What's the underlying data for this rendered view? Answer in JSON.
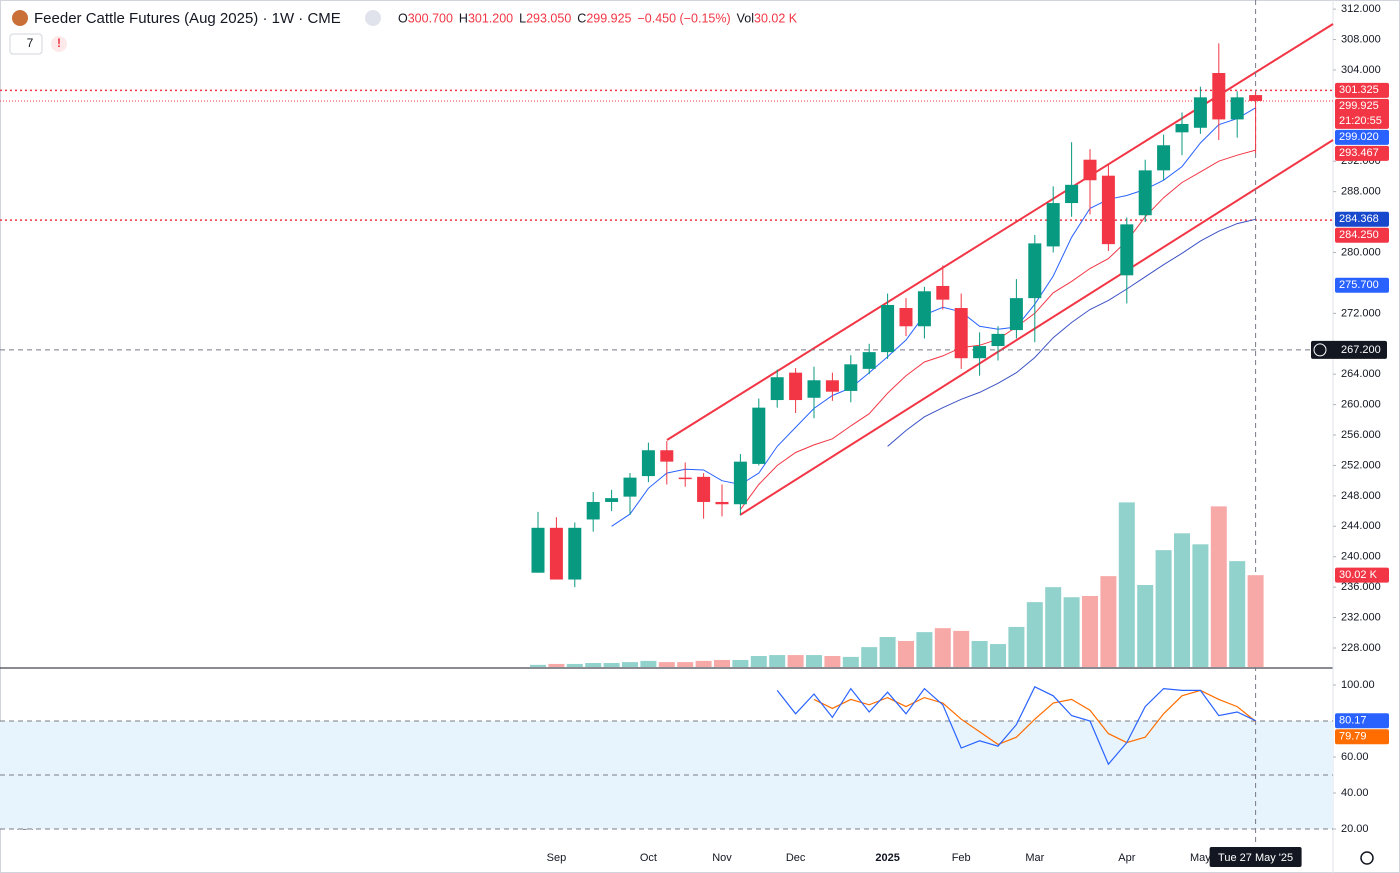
{
  "chart_data": {
    "type": "candlestick",
    "title": "Feeder Cattle Futures (Aug 2025) · 1W · CME",
    "header": [
      {
        "key": "O",
        "value": "300.700"
      },
      {
        "key": "H",
        "value": "301.200"
      },
      {
        "key": "L",
        "value": "293.050"
      },
      {
        "key": "C",
        "value": "299.925"
      },
      {
        "key": "",
        "value": "−0.450 (−0.15%)"
      },
      {
        "key": "Vol",
        "value": "30.02 K"
      }
    ],
    "indicator_count": "7",
    "categories": [
      null,
      "Sep",
      null,
      null,
      null,
      null,
      "Oct",
      null,
      null,
      null,
      "Nov",
      null,
      null,
      null,
      "Dec",
      null,
      null,
      null,
      null,
      "2025",
      null,
      null,
      null,
      "Feb",
      null,
      null,
      null,
      "Mar",
      null,
      null,
      null,
      null,
      "Apr",
      null,
      null,
      null,
      "May",
      null,
      null,
      null
    ],
    "open": [
      237.9,
      243.8,
      237.0,
      244.9,
      247.2,
      247.9,
      250.6,
      254.0,
      250.4,
      250.5,
      247.2,
      246.9,
      252.2,
      260.6,
      264.2,
      260.9,
      263.2,
      261.8,
      264.7,
      266.9,
      272.7,
      270.3,
      275.6,
      272.7,
      266.1,
      267.7,
      269.8,
      274.0,
      280.8,
      286.5,
      292.2,
      290.1,
      277.0,
      284.9,
      290.8,
      295.8,
      296.4,
      303.6,
      297.5,
      300.7
    ],
    "high": [
      245.9,
      245.2,
      244.5,
      248.5,
      248.8,
      251.0,
      255.0,
      255.2,
      252.4,
      251.0,
      249.5,
      253.5,
      260.8,
      264.6,
      264.8,
      265.0,
      264.2,
      266.5,
      268.0,
      274.6,
      274.0,
      275.5,
      278.3,
      274.6,
      269.5,
      270.3,
      276.5,
      282.3,
      288.7,
      294.5,
      293.6,
      291.6,
      284.6,
      292.2,
      295.5,
      298.4,
      301.8,
      307.5,
      301.2,
      301.2
    ],
    "low": [
      237.9,
      237.0,
      236.0,
      243.3,
      246.0,
      245.5,
      249.8,
      249.5,
      249.2,
      245.0,
      245.3,
      245.5,
      252.0,
      259.6,
      258.9,
      258.2,
      260.5,
      260.3,
      264.0,
      266.0,
      269.0,
      268.7,
      272.5,
      264.7,
      263.8,
      265.8,
      268.7,
      268.2,
      280.0,
      284.7,
      285.0,
      280.2,
      273.3,
      284.0,
      289.5,
      292.8,
      295.6,
      294.8,
      295.1,
      293.05
    ],
    "close": [
      243.8,
      237.0,
      243.8,
      247.2,
      247.7,
      250.4,
      254.0,
      252.5,
      250.2,
      247.2,
      246.9,
      252.5,
      259.6,
      263.6,
      260.6,
      263.2,
      261.7,
      265.3,
      266.9,
      273.1,
      270.3,
      274.9,
      273.8,
      266.1,
      267.7,
      269.3,
      274.0,
      281.2,
      286.5,
      288.9,
      289.5,
      281.1,
      283.7,
      290.8,
      294.1,
      296.9,
      300.4,
      297.5,
      300.4,
      299.925
    ],
    "up_color": "#089981",
    "down_color": "#f23645",
    "volume": [
      0.7,
      1.0,
      1.0,
      1.3,
      1.3,
      1.6,
      2.0,
      1.6,
      1.6,
      2.0,
      2.3,
      2.3,
      3.6,
      3.9,
      3.9,
      3.9,
      3.6,
      3.3,
      6.5,
      9.8,
      8.5,
      11.4,
      12.7,
      11.8,
      8.5,
      7.5,
      13.1,
      21.2,
      26.1,
      22.8,
      23.2,
      29.7,
      53.8,
      26.8,
      38.2,
      43.7,
      40.1,
      52.5,
      34.6,
      30.02
    ],
    "volume_ylim": [
      0,
      218
    ],
    "volume_up_color": "#92d2cc",
    "volume_down_color": "#f7a9a7",
    "volume_label": {
      "value": 30.02,
      "label": "30.02 K"
    },
    "series": [
      {
        "color": "#2962ff",
        "values": [
          null,
          null,
          null,
          null,
          244.0,
          245.6,
          249.0,
          251.0,
          251.5,
          251.4,
          250.0,
          249.5,
          251.0,
          254.5,
          257.0,
          259.5,
          261.2,
          262.2,
          264.2,
          266.3,
          268.5,
          271.8,
          272.8,
          272.2,
          270.3,
          269.9,
          270.2,
          273.2,
          276.9,
          282.0,
          285.8,
          287.0,
          287.5,
          288.3,
          289.5,
          291.3,
          294.4,
          296.8,
          297.6,
          299.02
        ]
      },
      {
        "color": "#f23645",
        "values": [
          null,
          null,
          null,
          null,
          null,
          null,
          null,
          null,
          null,
          null,
          null,
          246.2,
          249.5,
          252.0,
          253.7,
          254.7,
          255.5,
          257.2,
          258.8,
          261.5,
          263.8,
          265.6,
          266.4,
          267.5,
          267.8,
          268.6,
          270.2,
          272.0,
          274.7,
          276.2,
          277.9,
          279.2,
          281.5,
          284.7,
          287.2,
          289.2,
          290.6,
          292.0,
          292.8,
          293.467
        ]
      },
      {
        "color": "#3d52c4",
        "values": [
          null,
          null,
          null,
          null,
          null,
          null,
          null,
          null,
          null,
          null,
          null,
          null,
          null,
          null,
          null,
          null,
          null,
          null,
          null,
          254.5,
          256.6,
          258.4,
          259.6,
          260.7,
          261.6,
          262.8,
          264.2,
          266.2,
          268.8,
          270.8,
          272.5,
          273.7,
          275.2,
          276.8,
          278.4,
          279.9,
          281.5,
          282.8,
          283.8,
          284.368
        ]
      }
    ],
    "ylim": [
      225.5,
      313.2
    ],
    "yticks": [
      {
        "value": 312,
        "label": "312.000"
      },
      {
        "value": 308,
        "label": "308.000"
      },
      {
        "value": 304,
        "label": "304.000"
      },
      {
        "value": 292,
        "label": "292.000"
      },
      {
        "value": 288,
        "label": "288.000"
      },
      {
        "value": 280,
        "label": "280.000"
      },
      {
        "value": 272,
        "label": "272.000"
      },
      {
        "value": 264,
        "label": "264.000"
      },
      {
        "value": 260,
        "label": "260.000"
      },
      {
        "value": 256,
        "label": "256.000"
      },
      {
        "value": 252,
        "label": "252.000"
      },
      {
        "value": 248,
        "label": "248.000"
      },
      {
        "value": 244,
        "label": "244.000"
      },
      {
        "value": 240,
        "label": "240.000"
      },
      {
        "value": 236,
        "label": "236.000"
      },
      {
        "value": 232,
        "label": "232.000"
      },
      {
        "value": 228,
        "label": "228.000"
      }
    ],
    "price_lines": [
      {
        "value": 301.325,
        "label": "301.325",
        "color": "#f23645"
      },
      {
        "value": 284.25,
        "label": "284.250",
        "color": "#f23645"
      }
    ],
    "axis_badges": [
      {
        "value": 301.325,
        "label": "301.325",
        "color": "#f23645"
      },
      {
        "value": 299.925,
        "label": "299.925",
        "sub": "21:20:55",
        "color": "#f23645"
      },
      {
        "value": 299.02,
        "label": "299.020",
        "color": "#2962ff"
      },
      {
        "value": 293.467,
        "label": "293.467",
        "color": "#f23645"
      },
      {
        "value": 284.368,
        "label": "284.368",
        "color": "#1848cc"
      },
      {
        "value": 284.25,
        "label": "284.250",
        "color": "#f23645"
      },
      {
        "value": 275.7,
        "label": "275.700",
        "color": "#2962ff"
      }
    ],
    "crosshair": {
      "price": {
        "value": 267.2,
        "label": "267.200"
      },
      "date": "Tue 27 May '25"
    },
    "stochastic": {
      "k": {
        "color": "#2962ff",
        "values": [
          null,
          null,
          null,
          null,
          null,
          null,
          null,
          null,
          null,
          null,
          null,
          null,
          null,
          97,
          84,
          95,
          82,
          98,
          85,
          96,
          84,
          98,
          89,
          65,
          69,
          66,
          78,
          99,
          94,
          83,
          80,
          56,
          68,
          88,
          98,
          97,
          97,
          83,
          85,
          80.17
        ]
      },
      "d": {
        "color": "#ff6d00",
        "values": [
          null,
          null,
          null,
          null,
          null,
          null,
          null,
          null,
          null,
          null,
          null,
          null,
          null,
          null,
          null,
          92,
          87,
          92,
          89,
          93,
          88,
          93,
          90,
          81,
          74,
          67,
          71,
          81,
          90,
          92,
          86,
          73,
          68,
          71,
          84,
          94,
          97,
          92,
          88,
          79.79
        ]
      },
      "ylim": [
        11.1,
        108.9
      ],
      "yticks": [
        {
          "value": 100,
          "label": "100.00"
        },
        {
          "value": 60,
          "label": "60.00"
        },
        {
          "value": 40,
          "label": "40.00"
        },
        {
          "value": 20,
          "label": "20.00"
        }
      ],
      "bands": [
        80,
        50,
        20
      ],
      "badges": [
        {
          "value": 80.17,
          "label": "80.17",
          "color": "#2962ff"
        },
        {
          "value": 79.79,
          "label": "79.79",
          "color": "#ff6d00"
        }
      ]
    }
  }
}
